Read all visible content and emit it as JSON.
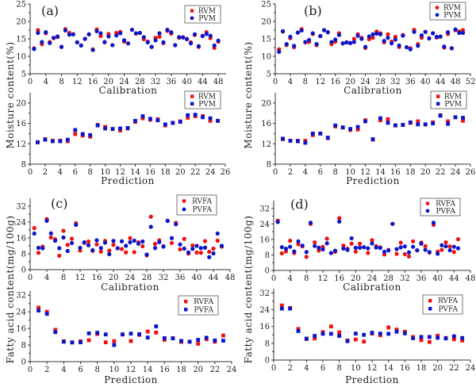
{
  "colors": {
    "rvm": "#ee1111",
    "pvm": "#0a14c8"
  },
  "y_titles": {
    "moisture": "Moisture content(%)",
    "fatty": "Fatty acid content(mg/100g)"
  },
  "chart_data": [
    {
      "id": "a-cal",
      "panel_label": "(a)",
      "type": "scatter",
      "marker": "circle",
      "xlabel": "Calibration",
      "xlim": [
        0,
        50
      ],
      "ylim": [
        5,
        25
      ],
      "xticks": [
        0,
        4,
        8,
        12,
        16,
        20,
        24,
        28,
        32,
        36,
        40,
        44,
        48
      ],
      "yticks": [
        5,
        10,
        15,
        20,
        25
      ],
      "legend": "top-right",
      "x": [
        1,
        2,
        3,
        4,
        5,
        6,
        7,
        8,
        9,
        10,
        11,
        12,
        13,
        14,
        15,
        16,
        17,
        18,
        19,
        20,
        21,
        22,
        23,
        24,
        25,
        26,
        27,
        28,
        29,
        30,
        31,
        32,
        33,
        34,
        35,
        36,
        37,
        38,
        39,
        40,
        41,
        42,
        43,
        44,
        45,
        46,
        47,
        48
      ],
      "series": [
        {
          "name": "RVM",
          "values": [
            12.3,
            17.5,
            13.5,
            16.6,
            14.1,
            15.2,
            15.5,
            12.7,
            17.8,
            16.7,
            16.3,
            14.0,
            13.1,
            15.0,
            16.3,
            12.0,
            17.7,
            15.8,
            14.0,
            16.4,
            13.2,
            16.7,
            17.0,
            14.2,
            13.7,
            17.6,
            16.5,
            16.7,
            14.9,
            14.2,
            12.7,
            15.3,
            15.6,
            13.8,
            17.3,
            16.5,
            13.2,
            15.3,
            15.5,
            15.0,
            14.0,
            16.1,
            12.7,
            15.9,
            16.9,
            15.2,
            12.4,
            14.2
          ]
        },
        {
          "name": "PVM",
          "values": [
            12.1,
            16.7,
            14.1,
            16.9,
            13.8,
            15.3,
            15.7,
            12.7,
            17.4,
            16.2,
            16.3,
            14.0,
            13.1,
            15.0,
            16.3,
            11.8,
            17.2,
            16.6,
            14.1,
            15.7,
            13.2,
            16.0,
            16.6,
            14.6,
            13.7,
            17.6,
            16.6,
            16.7,
            15.5,
            14.0,
            12.7,
            14.6,
            16.6,
            14.0,
            17.6,
            16.9,
            13.2,
            15.5,
            15.4,
            14.9,
            13.7,
            16.3,
            12.9,
            15.8,
            16.4,
            15.9,
            13.1,
            14.5
          ]
        }
      ]
    },
    {
      "id": "b-cal",
      "panel_label": "(b)",
      "type": "scatter",
      "marker": "circle",
      "xlabel": "Calibration",
      "xlim": [
        0,
        52
      ],
      "ylim": [
        5,
        25
      ],
      "xticks": [
        0,
        4,
        8,
        12,
        16,
        20,
        24,
        28,
        32,
        36,
        40,
        44,
        48,
        52
      ],
      "yticks": [
        5,
        10,
        15,
        20,
        25
      ],
      "legend": "top-right",
      "x": [
        1,
        2,
        3,
        4,
        5,
        6,
        7,
        8,
        9,
        10,
        11,
        12,
        13,
        14,
        15,
        16,
        17,
        18,
        19,
        20,
        21,
        22,
        23,
        24,
        25,
        26,
        27,
        28,
        29,
        30,
        31,
        32,
        33,
        34,
        35,
        36,
        37,
        38,
        39,
        40,
        41,
        42,
        43,
        44,
        45,
        46,
        47,
        48,
        49,
        50
      ],
      "series": [
        {
          "name": "RVM",
          "values": [
            12.0,
            17.1,
            13.2,
            15.2,
            12.6,
            16.8,
            17.8,
            14.0,
            14.1,
            16.4,
            13.2,
            15.8,
            17.5,
            16.9,
            13.5,
            14.2,
            16.6,
            13.7,
            14.0,
            13.8,
            15.0,
            16.3,
            15.3,
            12.4,
            14.9,
            15.3,
            17.1,
            16.6,
            14.0,
            16.3,
            14.2,
            15.6,
            12.7,
            16.1,
            12.6,
            12.3,
            17.6,
            13.5,
            15.3,
            17.0,
            15.2,
            16.6,
            15.4,
            15.6,
            12.5,
            16.4,
            12.3,
            17.5,
            17.1,
            17.5
          ]
        },
        {
          "name": "PVM",
          "values": [
            11.3,
            17.2,
            13.5,
            15.6,
            13.0,
            16.8,
            17.4,
            14.1,
            14.7,
            16.6,
            13.5,
            15.8,
            17.5,
            16.9,
            14.1,
            14.8,
            16.1,
            13.7,
            14.0,
            13.8,
            14.1,
            15.9,
            15.0,
            12.7,
            15.7,
            16.3,
            16.5,
            16.3,
            14.4,
            15.3,
            13.7,
            14.8,
            13.1,
            15.9,
            12.6,
            12.0,
            17.0,
            13.0,
            16.0,
            17.0,
            15.1,
            16.6,
            15.6,
            15.7,
            12.8,
            16.9,
            12.3,
            17.7,
            16.7,
            16.7
          ]
        }
      ]
    },
    {
      "id": "a-pred",
      "type": "scatter",
      "marker": "square",
      "xlabel": "Prediction",
      "xlim": [
        0,
        26
      ],
      "ylim": [
        8,
        22
      ],
      "xticks": [
        0,
        2,
        4,
        6,
        8,
        10,
        12,
        14,
        16,
        18,
        20,
        22,
        24,
        26
      ],
      "yticks": [
        8,
        12,
        16,
        20
      ],
      "legend": "top-right",
      "x": [
        1,
        2,
        3,
        4,
        5,
        6,
        7,
        8,
        9,
        10,
        11,
        12,
        13,
        14,
        15,
        16,
        17,
        18,
        19,
        20,
        21,
        22,
        23,
        24,
        25
      ],
      "series": [
        {
          "name": "RVM",
          "values": [
            12.3,
            12.9,
            12.6,
            12.6,
            12.5,
            13.9,
            13.6,
            13.4,
            15.7,
            15.3,
            14.9,
            14.6,
            15.0,
            16.3,
            17.0,
            16.7,
            16.8,
            15.6,
            16.1,
            16.4,
            17.1,
            17.4,
            17.4,
            16.5,
            16.5
          ]
        },
        {
          "name": "PVM",
          "values": [
            12.3,
            12.8,
            12.5,
            12.5,
            12.8,
            14.7,
            13.9,
            13.7,
            15.6,
            15.0,
            14.9,
            15.0,
            15.1,
            16.5,
            17.4,
            16.9,
            16.6,
            15.8,
            16.1,
            16.3,
            17.6,
            17.7,
            17.2,
            17.0,
            16.5
          ]
        }
      ]
    },
    {
      "id": "b-pred",
      "type": "scatter",
      "marker": "square",
      "xlabel": "Prediction",
      "xlim": [
        0,
        26
      ],
      "ylim": [
        8,
        22
      ],
      "xticks": [
        0,
        2,
        4,
        6,
        8,
        10,
        12,
        14,
        16,
        18,
        20,
        22,
        24,
        26
      ],
      "yticks": [
        8,
        12,
        16,
        20
      ],
      "legend": "top-right",
      "x": [
        1,
        2,
        3,
        4,
        5,
        6,
        7,
        8,
        9,
        10,
        11,
        12,
        13,
        14,
        15,
        16,
        17,
        18,
        19,
        20,
        21,
        22,
        23,
        24,
        25
      ],
      "series": [
        {
          "name": "RVM",
          "values": [
            12.9,
            12.6,
            12.6,
            12.6,
            13.7,
            14.0,
            13.1,
            15.4,
            15.2,
            14.7,
            14.8,
            16.6,
            12.8,
            16.6,
            16.8,
            15.6,
            15.7,
            16.1,
            16.4,
            15.8,
            16.2,
            17.6,
            16.4,
            17.2,
            16.5
          ]
        },
        {
          "name": "PVM",
          "values": [
            13.0,
            12.6,
            12.5,
            12.2,
            14.0,
            14.0,
            13.2,
            15.6,
            15.2,
            14.9,
            15.3,
            16.4,
            12.9,
            17.0,
            16.1,
            15.6,
            15.7,
            16.2,
            15.8,
            15.8,
            16.0,
            17.5,
            15.9,
            17.2,
            17.1
          ]
        }
      ]
    },
    {
      "id": "c-cal",
      "panel_label": "(c)",
      "type": "scatter",
      "marker": "circle",
      "xlabel": "Calibration",
      "xlim": [
        0,
        48
      ],
      "ylim": [
        0,
        36
      ],
      "xticks": [
        0,
        4,
        8,
        12,
        16,
        20,
        24,
        28,
        32,
        36,
        40,
        44,
        48
      ],
      "yticks": [
        0,
        8,
        16,
        24,
        32
      ],
      "legend": "top-right",
      "x": [
        1,
        2,
        3,
        4,
        5,
        6,
        7,
        8,
        9,
        10,
        11,
        12,
        13,
        14,
        15,
        16,
        17,
        18,
        19,
        20,
        21,
        22,
        23,
        24,
        25,
        26,
        27,
        28,
        29,
        30,
        31,
        32,
        33,
        34,
        35,
        36,
        37,
        38,
        39,
        40,
        41,
        42,
        43,
        44,
        45,
        46
      ],
      "series": [
        {
          "name": "RVFA",
          "values": [
            21.0,
            8.5,
            11.6,
            25.5,
            16.2,
            15.3,
            7.0,
            19.6,
            12.5,
            15.6,
            23.4,
            9.6,
            13.5,
            14.2,
            9.5,
            12.7,
            9.1,
            14.5,
            9.6,
            12.5,
            10.8,
            10.4,
            8.7,
            15.9,
            8.8,
            13.8,
            11.8,
            7.2,
            26.7,
            13.0,
            14.8,
            11.8,
            24.6,
            13.4,
            23.6,
            10.2,
            15.5,
            8.1,
            12.2,
            8.6,
            8.5,
            14.4,
            9.0,
            10.6,
            14.6,
            11.6
          ]
        },
        {
          "name": "PVFA",
          "values": [
            18.2,
            11.0,
            10.8,
            24.6,
            18.3,
            14.6,
            10.8,
            16.2,
            9.4,
            13.4,
            22.6,
            11.0,
            13.8,
            12.3,
            9.8,
            14.8,
            10.9,
            13.6,
            7.8,
            14.5,
            10.8,
            14.3,
            12.0,
            13.8,
            14.6,
            13.1,
            14.2,
            7.6,
            21.6,
            10.9,
            13.9,
            11.6,
            24.6,
            15.9,
            22.9,
            12.7,
            10.6,
            8.7,
            10.5,
            12.0,
            10.9,
            11.1,
            6.3,
            8.2,
            18.2,
            12.0
          ]
        }
      ]
    },
    {
      "id": "d-cal",
      "panel_label": "(d)",
      "type": "scatter",
      "marker": "circle",
      "xlabel": "Calibration",
      "xlim": [
        0,
        48
      ],
      "ylim": [
        0,
        36
      ],
      "xticks": [
        0,
        4,
        8,
        12,
        16,
        20,
        24,
        28,
        32,
        36,
        40,
        44,
        48
      ],
      "yticks": [
        0,
        8,
        16,
        24,
        32
      ],
      "legend": "top-right",
      "x": [
        1,
        2,
        3,
        4,
        5,
        6,
        7,
        8,
        9,
        10,
        11,
        12,
        13,
        14,
        15,
        16,
        17,
        18,
        19,
        20,
        21,
        22,
        23,
        24,
        25,
        26,
        27,
        28,
        29,
        30,
        31,
        32,
        33,
        34,
        35,
        36,
        37,
        38,
        39,
        40,
        41,
        42,
        43,
        44,
        45
      ],
      "series": [
        {
          "name": "RVFA",
          "values": [
            25.7,
            8.8,
            9.8,
            15.3,
            9.0,
            13.5,
            12.4,
            7.0,
            24.0,
            14.5,
            10.2,
            12.2,
            16.4,
            9.0,
            9.6,
            27.0,
            12.8,
            11.2,
            13.8,
            9.7,
            13.8,
            12.0,
            9.0,
            15.6,
            12.5,
            11.9,
            8.2,
            10.6,
            24.0,
            8.5,
            14.3,
            8.4,
            7.2,
            15.0,
            10.3,
            14.4,
            12.5,
            9.2,
            23.5,
            9.7,
            10.6,
            14.5,
            12.4,
            9.5,
            16.1
          ]
        },
        {
          "name": "PVFA",
          "values": [
            25.0,
            12.0,
            11.2,
            12.2,
            9.8,
            15.0,
            12.8,
            9.5,
            24.6,
            12.6,
            11.7,
            10.9,
            14.0,
            9.0,
            10.2,
            25.2,
            11.3,
            10.6,
            16.6,
            11.7,
            11.7,
            12.0,
            11.4,
            13.9,
            11.8,
            11.6,
            9.6,
            10.3,
            24.0,
            11.0,
            11.9,
            12.4,
            9.3,
            12.2,
            10.4,
            13.8,
            10.6,
            9.5,
            24.6,
            8.6,
            13.0,
            12.4,
            10.4,
            12.2,
            11.4
          ]
        }
      ]
    },
    {
      "id": "c-pred",
      "type": "scatter",
      "marker": "square",
      "xlabel": "Prediction",
      "xlim": [
        0,
        24
      ],
      "ylim": [
        0,
        34
      ],
      "xticks": [
        0,
        2,
        4,
        6,
        8,
        10,
        12,
        14,
        16,
        18,
        20,
        22,
        24
      ],
      "yticks": [
        0,
        8,
        16,
        24,
        32
      ],
      "legend": "top-right",
      "x": [
        1,
        2,
        3,
        4,
        5,
        6,
        7,
        8,
        9,
        10,
        11,
        12,
        13,
        14,
        15,
        16,
        17,
        18,
        19,
        20,
        21,
        22,
        23
      ],
      "series": [
        {
          "name": "RVFA",
          "values": [
            26.0,
            24.0,
            15.3,
            9.8,
            9.2,
            9.8,
            10.3,
            13.3,
            9.3,
            9.9,
            13.1,
            9.9,
            12.9,
            14.5,
            14.0,
            10.5,
            11.3,
            9.5,
            9.6,
            8.6,
            10.8,
            9.6,
            12.6
          ]
        },
        {
          "name": "PVFA",
          "values": [
            24.6,
            23.0,
            14.2,
            9.6,
            9.3,
            9.3,
            13.6,
            13.9,
            13.1,
            8.0,
            13.1,
            13.5,
            13.2,
            11.6,
            17.0,
            11.3,
            11.2,
            10.0,
            9.6,
            10.5,
            11.5,
            10.2,
            10.1
          ]
        }
      ]
    },
    {
      "id": "d-pred",
      "type": "scatter",
      "marker": "square",
      "xlabel": "Prediction",
      "xlim": [
        0,
        24
      ],
      "ylim": [
        0,
        34
      ],
      "xticks": [
        0,
        2,
        4,
        6,
        8,
        10,
        12,
        14,
        16,
        18,
        20,
        22,
        24
      ],
      "yticks": [
        0,
        8,
        16,
        24,
        32
      ],
      "legend": "top-right",
      "x": [
        1,
        2,
        3,
        4,
        5,
        6,
        7,
        8,
        9,
        10,
        11,
        12,
        13,
        14,
        15,
        16,
        17,
        18,
        19,
        20,
        21,
        22,
        23
      ],
      "series": [
        {
          "name": "RVFA",
          "values": [
            26.0,
            24.8,
            14.8,
            10.0,
            10.3,
            13.3,
            16.0,
            13.2,
            9.3,
            9.8,
            8.8,
            12.6,
            11.8,
            15.5,
            14.5,
            13.5,
            11.0,
            9.5,
            8.6,
            11.6,
            10.5,
            9.9,
            9.3
          ]
        },
        {
          "name": "PVFA",
          "values": [
            24.5,
            24.5,
            13.8,
            10.2,
            11.5,
            12.5,
            12.5,
            11.5,
            9.0,
            12.6,
            12.0,
            13.0,
            12.6,
            12.5,
            13.5,
            12.7,
            10.4,
            11.0,
            11.0,
            10.6,
            10.3,
            11.3,
            10.5
          ]
        }
      ]
    }
  ]
}
